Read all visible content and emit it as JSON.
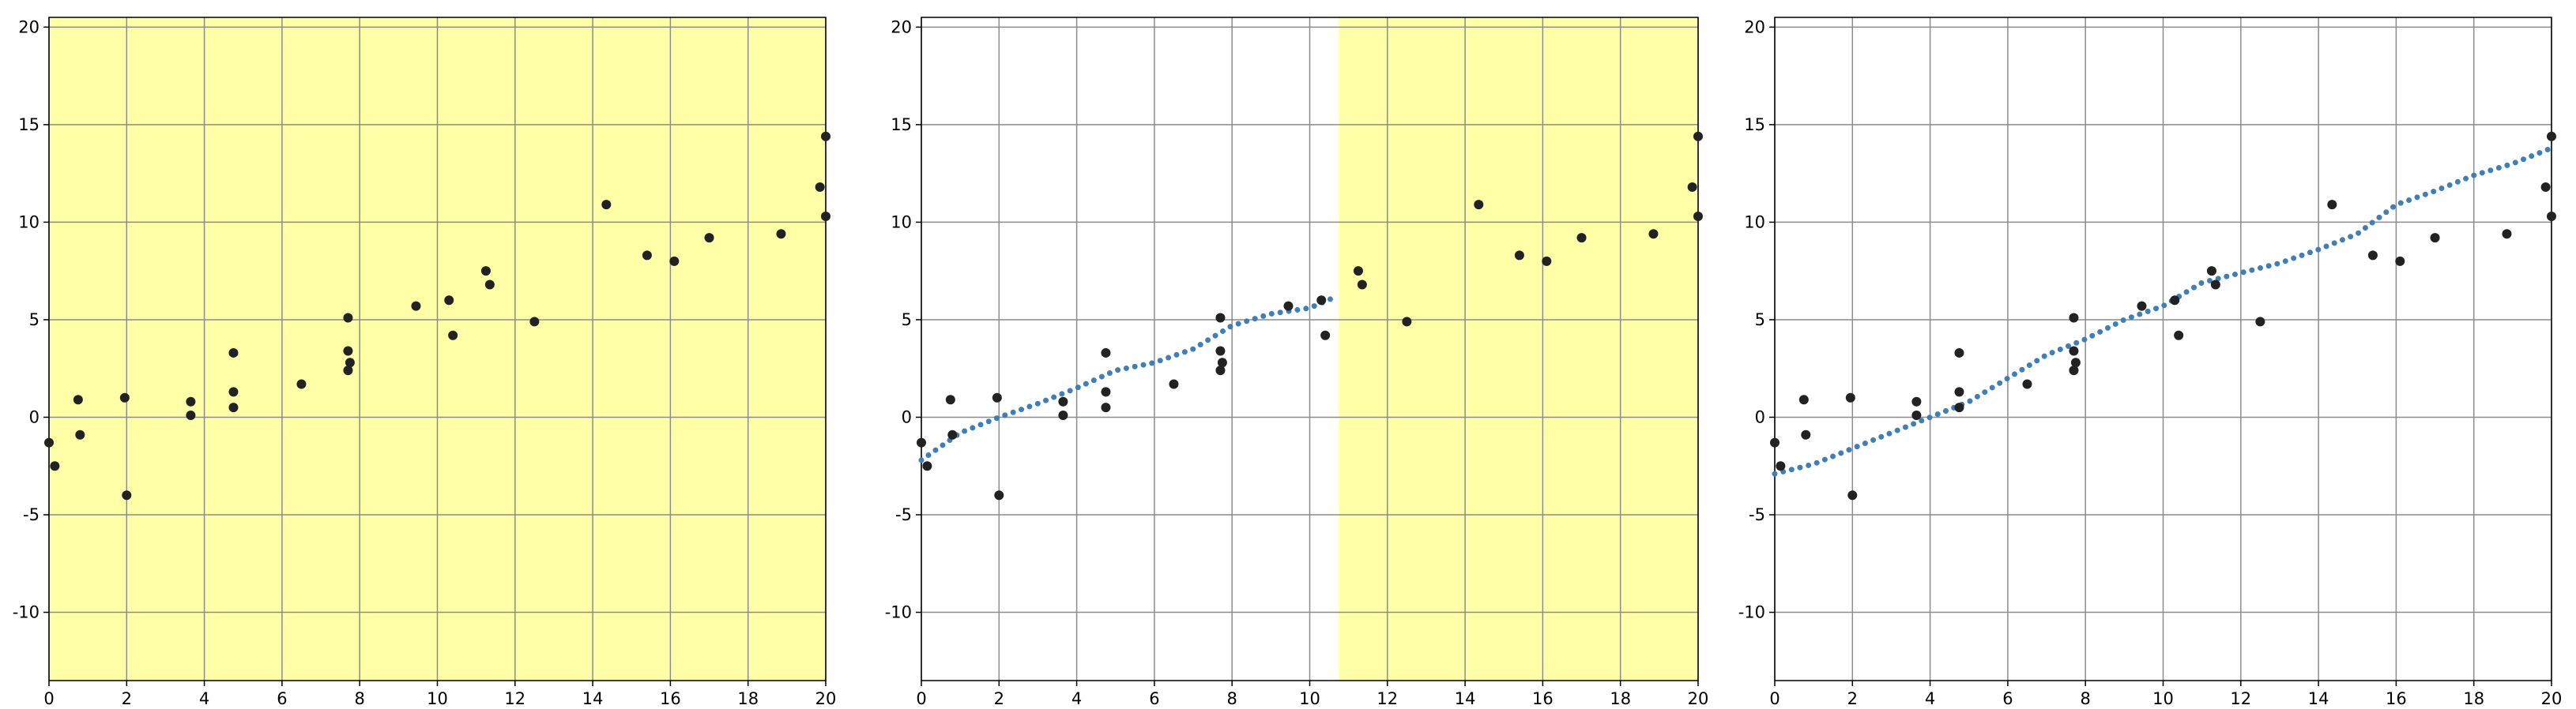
{
  "colors": {
    "highlight": "#ffffa8",
    "point": "#222222",
    "fit": "#3f7fb5",
    "grid": "#8c8c8c",
    "axis": "#000000"
  },
  "chart_data": [
    {
      "type": "scatter",
      "title": "",
      "xlabel": "",
      "ylabel": "",
      "xlim": [
        0,
        20
      ],
      "ylim": [
        -13.5,
        20.5
      ],
      "grid": true,
      "x_ticks": [
        "0",
        "2",
        "4",
        "6",
        "8",
        "10",
        "12",
        "14",
        "16",
        "18",
        "20"
      ],
      "y_ticks": [
        "-10",
        "-5",
        "0",
        "5",
        "10",
        "15",
        "20"
      ],
      "highlight_x": [
        0,
        20
      ],
      "points": [
        [
          0.0,
          -1.3
        ],
        [
          0.15,
          -2.5
        ],
        [
          0.75,
          0.9
        ],
        [
          0.8,
          -0.9
        ],
        [
          1.95,
          1.0
        ],
        [
          2.0,
          -4.0
        ],
        [
          3.65,
          0.8
        ],
        [
          3.65,
          0.1
        ],
        [
          4.75,
          3.3
        ],
        [
          4.75,
          1.3
        ],
        [
          4.75,
          0.5
        ],
        [
          6.5,
          1.7
        ],
        [
          7.7,
          5.1
        ],
        [
          7.7,
          3.4
        ],
        [
          7.75,
          2.8
        ],
        [
          7.7,
          2.4
        ],
        [
          9.45,
          5.7
        ],
        [
          10.3,
          6.0
        ],
        [
          10.4,
          4.2
        ],
        [
          11.25,
          7.5
        ],
        [
          11.35,
          6.8
        ],
        [
          12.5,
          4.9
        ],
        [
          14.35,
          10.9
        ],
        [
          15.4,
          8.3
        ],
        [
          16.1,
          8.0
        ],
        [
          17.0,
          9.2
        ],
        [
          18.85,
          9.4
        ],
        [
          19.85,
          11.8
        ],
        [
          20.0,
          14.4
        ],
        [
          20.0,
          10.3
        ]
      ],
      "fit": []
    },
    {
      "type": "scatter",
      "title": "",
      "xlabel": "",
      "ylabel": "",
      "xlim": [
        0,
        20
      ],
      "ylim": [
        -13.5,
        20.5
      ],
      "grid": true,
      "x_ticks": [
        "0",
        "2",
        "4",
        "6",
        "8",
        "10",
        "12",
        "14",
        "16",
        "18",
        "20"
      ],
      "y_ticks": [
        "-10",
        "-5",
        "0",
        "5",
        "10",
        "15",
        "20"
      ],
      "highlight_x": [
        10.75,
        20
      ],
      "points": [
        [
          0.0,
          -1.3
        ],
        [
          0.15,
          -2.5
        ],
        [
          0.75,
          0.9
        ],
        [
          0.8,
          -0.9
        ],
        [
          1.95,
          1.0
        ],
        [
          2.0,
          -4.0
        ],
        [
          3.65,
          0.8
        ],
        [
          3.65,
          0.1
        ],
        [
          4.75,
          3.3
        ],
        [
          4.75,
          1.3
        ],
        [
          4.75,
          0.5
        ],
        [
          6.5,
          1.7
        ],
        [
          7.7,
          5.1
        ],
        [
          7.7,
          3.4
        ],
        [
          7.75,
          2.8
        ],
        [
          7.7,
          2.4
        ],
        [
          9.45,
          5.7
        ],
        [
          10.3,
          6.0
        ],
        [
          10.4,
          4.2
        ],
        [
          11.25,
          7.5
        ],
        [
          11.35,
          6.8
        ],
        [
          12.5,
          4.9
        ],
        [
          14.35,
          10.9
        ],
        [
          15.4,
          8.3
        ],
        [
          16.1,
          8.0
        ],
        [
          17.0,
          9.2
        ],
        [
          18.85,
          9.4
        ],
        [
          19.85,
          11.8
        ],
        [
          20.0,
          14.4
        ],
        [
          20.0,
          10.3
        ]
      ],
      "fit": [
        [
          0,
          -2.2
        ],
        [
          1,
          -0.8
        ],
        [
          2,
          0.0
        ],
        [
          3,
          0.7
        ],
        [
          4,
          1.5
        ],
        [
          5,
          2.4
        ],
        [
          6,
          2.8
        ],
        [
          7,
          3.5
        ],
        [
          8,
          4.7
        ],
        [
          9,
          5.3
        ],
        [
          10,
          5.6
        ],
        [
          10.7,
          6.2
        ]
      ]
    },
    {
      "type": "scatter",
      "title": "",
      "xlabel": "",
      "ylabel": "",
      "xlim": [
        0,
        20
      ],
      "ylim": [
        -13.5,
        20.5
      ],
      "grid": true,
      "x_ticks": [
        "0",
        "2",
        "4",
        "6",
        "8",
        "10",
        "12",
        "14",
        "16",
        "18",
        "20"
      ],
      "y_ticks": [
        "-10",
        "-5",
        "0",
        "5",
        "10",
        "15",
        "20"
      ],
      "highlight_x": [],
      "points": [
        [
          0.0,
          -1.3
        ],
        [
          0.15,
          -2.5
        ],
        [
          0.75,
          0.9
        ],
        [
          0.8,
          -0.9
        ],
        [
          1.95,
          1.0
        ],
        [
          2.0,
          -4.0
        ],
        [
          3.65,
          0.8
        ],
        [
          3.65,
          0.1
        ],
        [
          4.75,
          3.3
        ],
        [
          4.75,
          1.3
        ],
        [
          4.75,
          0.5
        ],
        [
          6.5,
          1.7
        ],
        [
          7.7,
          5.1
        ],
        [
          7.7,
          3.4
        ],
        [
          7.75,
          2.8
        ],
        [
          7.7,
          2.4
        ],
        [
          9.45,
          5.7
        ],
        [
          10.3,
          6.0
        ],
        [
          10.4,
          4.2
        ],
        [
          11.25,
          7.5
        ],
        [
          11.35,
          6.8
        ],
        [
          12.5,
          4.9
        ],
        [
          14.35,
          10.9
        ],
        [
          15.4,
          8.3
        ],
        [
          16.1,
          8.0
        ],
        [
          17.0,
          9.2
        ],
        [
          18.85,
          9.4
        ],
        [
          19.85,
          11.8
        ],
        [
          20.0,
          14.4
        ],
        [
          20.0,
          10.3
        ]
      ],
      "fit": [
        [
          0,
          -2.9
        ],
        [
          1,
          -2.4
        ],
        [
          2,
          -1.6
        ],
        [
          3,
          -0.8
        ],
        [
          4,
          0.0
        ],
        [
          5,
          0.8
        ],
        [
          6,
          2.0
        ],
        [
          7,
          3.2
        ],
        [
          8,
          4.0
        ],
        [
          9,
          5.0
        ],
        [
          10,
          5.7
        ],
        [
          11,
          6.9
        ],
        [
          12,
          7.4
        ],
        [
          13,
          7.9
        ],
        [
          14,
          8.6
        ],
        [
          15,
          9.4
        ],
        [
          16,
          10.9
        ],
        [
          17,
          11.6
        ],
        [
          18,
          12.4
        ],
        [
          19,
          13.0
        ],
        [
          20,
          13.8
        ]
      ]
    }
  ]
}
